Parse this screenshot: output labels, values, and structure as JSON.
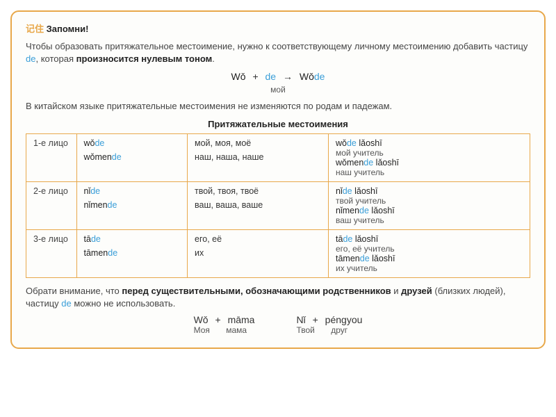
{
  "header": {
    "chinese": "记住",
    "ru": "Запомни!"
  },
  "intro": {
    "part1": "Чтобы образовать притяжательное местоимение, нужно к соответствующему личному местоимению добавить ",
    "linkword": "частицу",
    "de": "de",
    "part2": ", которая ",
    "bold2": "произносится нулевым тоном",
    "part3": "."
  },
  "formula": {
    "left": "Wǒ",
    "plus": "+",
    "de": "de",
    "arrow": "→",
    "res_base": "Wǒ",
    "res_de": "de",
    "sub": "мой"
  },
  "mid_text": "В китайском языке притяжательные местоимения не изменяются по родам и падежам.",
  "table_title": "Притяжательные местоимения",
  "rows": [
    {
      "person": "1-е лицо",
      "items": [
        {
          "pin": "wǒ",
          "de": "de",
          "ru": "мой, моя, моё",
          "ex_pin": "wǒ",
          "ex_de": "de",
          "ex_tail": " lǎoshī",
          "ex_ru": "мой учитель"
        },
        {
          "pin": "wǒmen",
          "de": "de",
          "ru": "наш, наша, наше",
          "ex_pin": "wǒmen",
          "ex_de": "de",
          "ex_tail": " lǎoshī",
          "ex_ru": "наш учитель"
        }
      ]
    },
    {
      "person": "2-е лицо",
      "items": [
        {
          "pin": "nǐ",
          "de": "de",
          "ru": "твой, твоя, твоё",
          "ex_pin": "nǐ",
          "ex_de": "de",
          "ex_tail": " lǎoshī",
          "ex_ru": "твой учитель"
        },
        {
          "pin": "nǐmen",
          "de": "de",
          "ru": "ваш, ваша, ваше",
          "ex_pin": "nǐmen",
          "ex_de": "de",
          "ex_tail": " lǎoshī",
          "ex_ru": "ваш учитель"
        }
      ]
    },
    {
      "person": "3-е лицо",
      "items": [
        {
          "pin": "tā",
          "de": "de",
          "ru": "его, её",
          "ex_pin": "tā",
          "ex_de": "de",
          "ex_tail": " lǎoshī",
          "ex_ru": "его, её учитель"
        },
        {
          "pin": "tāmen",
          "de": "de",
          "ru": "их",
          "ex_pin": "tāmen",
          "ex_de": "de",
          "ex_tail": " lǎoshī",
          "ex_ru": "их учитель"
        }
      ]
    }
  ],
  "note": {
    "t1": "Обрати внимание, что ",
    "b1": "перед существительными, обозначающими родственников",
    "t2": " и ",
    "b2": "друзей",
    "t3": " (близких людей), частицу ",
    "de": "de",
    "t4": " можно не использовать."
  },
  "bottom": {
    "left": {
      "a": "Wǒ",
      "plus": "+",
      "b": "māma",
      "ra": "Моя",
      "rb": "мама"
    },
    "right": {
      "a": "Nǐ",
      "plus": "+",
      "b": "péngyou",
      "ra": "Твой",
      "rb": "друг"
    }
  }
}
